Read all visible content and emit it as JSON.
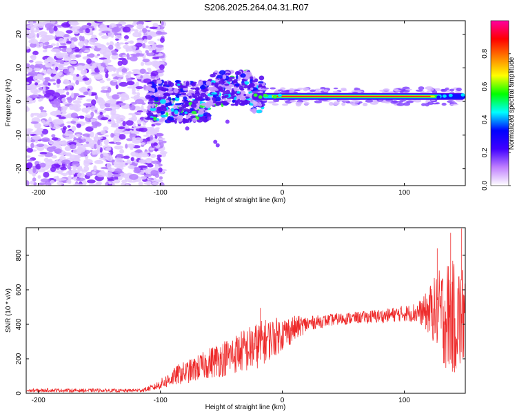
{
  "title": "S206.2025.264.04.31.R07",
  "chart_data": [
    {
      "type": "heatmap",
      "title": "S206.2025.264.04.31.R07",
      "xlabel": "Height of straight line (km)",
      "ylabel": "Frequency (Hz)",
      "xlim": [
        -210,
        150
      ],
      "ylim": [
        -25,
        24
      ],
      "xticks": [
        -200,
        -100,
        0,
        100
      ],
      "yticks": [
        -20,
        -10,
        0,
        10,
        20
      ],
      "tone_frequency_hz": 1.5,
      "tone_extent_km": [
        -25,
        150
      ],
      "strong_tone_extent_km": [
        -10,
        125
      ],
      "noise_extent_km": [
        -210,
        -105
      ],
      "colorbar": {
        "label": "Normalized spectral amplitude",
        "range": [
          0,
          1
        ],
        "ticks": [
          0.0,
          0.2,
          0.4,
          0.6,
          0.8
        ],
        "tick_labels": [
          "0.0",
          "0.2",
          "0.4",
          "0.6",
          "0.8"
        ],
        "colors": [
          "#ffffff",
          "#c080ff",
          "#4000ff",
          "#0000ff",
          "#00ffff",
          "#00ff00",
          "#ffff00",
          "#ff8000",
          "#ff0000",
          "#ff00a0"
        ]
      }
    },
    {
      "type": "line",
      "xlabel": "Height of straight line (km)",
      "ylabel": "SNR (10 * v/v)",
      "xlim": [
        -210,
        150
      ],
      "ylim": [
        0,
        960
      ],
      "xticks": [
        -200,
        -100,
        0,
        100
      ],
      "yticks": [
        0,
        200,
        400,
        600,
        800
      ],
      "color": "#ee2a2a",
      "series": [
        {
          "name": "SNR",
          "x": [
            -210,
            -190,
            -170,
            -150,
            -130,
            -115,
            -105,
            -95,
            -85,
            -75,
            -65,
            -55,
            -45,
            -35,
            -25,
            -15,
            -5,
            5,
            15,
            25,
            35,
            45,
            55,
            65,
            75,
            85,
            95,
            105,
            115,
            125,
            135,
            145,
            150
          ],
          "values": [
            15,
            18,
            16,
            17,
            15,
            18,
            35,
            70,
            110,
            130,
            160,
            190,
            210,
            240,
            260,
            300,
            330,
            360,
            390,
            410,
            420,
            430,
            435,
            440,
            445,
            450,
            460,
            465,
            470,
            480,
            450,
            430,
            450
          ],
          "noise_amplitude": [
            10,
            10,
            10,
            10,
            10,
            10,
            20,
            40,
            60,
            70,
            80,
            100,
            110,
            120,
            140,
            130,
            110,
            90,
            60,
            40,
            35,
            35,
            35,
            35,
            40,
            40,
            45,
            50,
            80,
            200,
            330,
            330,
            300
          ]
        }
      ],
      "spikes": [
        {
          "x": -18,
          "value": 495
        },
        {
          "x": 127,
          "value": 840
        },
        {
          "x": 138,
          "value": 930
        },
        {
          "x": 147,
          "value": 955
        }
      ]
    }
  ]
}
